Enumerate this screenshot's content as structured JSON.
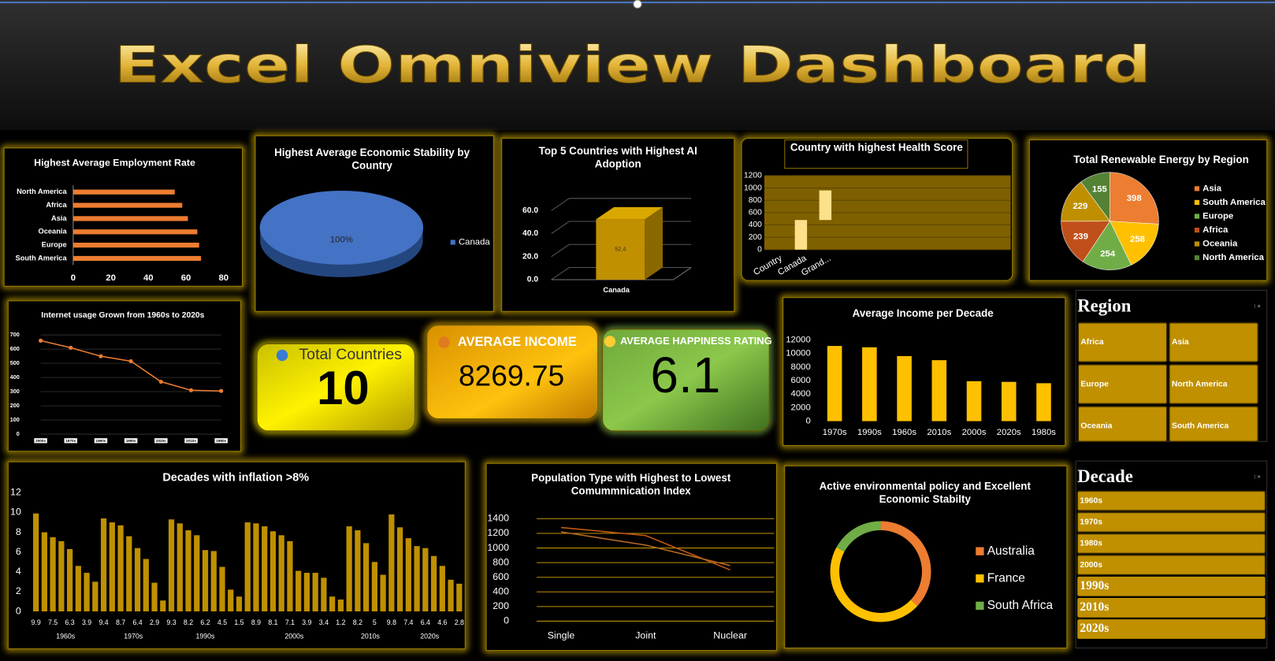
{
  "title": "Excel Omniview Dashboard",
  "chart_data": [
    {
      "type": "hbar",
      "title": "Highest  Average Employment Rate",
      "categories": [
        "North America",
        "Africa",
        "Asia",
        "Oceania",
        "Europe",
        "South America"
      ],
      "values": [
        54,
        58,
        61,
        66,
        67,
        68
      ],
      "color": "#ed7d31",
      "xlim": [
        0,
        80
      ],
      "xticks": [
        0,
        20,
        40,
        60,
        80
      ]
    },
    {
      "type": "pie3d",
      "title": "Highest Average Economic Stability by Country",
      "categories": [
        "Canada"
      ],
      "values": [
        100
      ],
      "value_labels": [
        "100%"
      ],
      "colors": [
        "#4472c4"
      ],
      "legend": "right"
    },
    {
      "type": "bar3d",
      "title": "Top 5 Countries with Highest AI Adoption",
      "categories": [
        "Canada"
      ],
      "values": [
        52.4
      ],
      "color": "#c09000",
      "ylim": [
        0,
        60
      ],
      "yticks": [
        {
          "value": 0,
          "label": "0.0"
        },
        {
          "value": 20,
          "label": "20.0"
        },
        {
          "value": 40,
          "label": "40.0"
        },
        {
          "value": 60,
          "label": "60.0"
        }
      ]
    },
    {
      "type": "waterfall",
      "title": "Country with highest Health Score",
      "categories": [
        "Country",
        "Canada",
        "Grand..."
      ],
      "values": [
        0,
        480,
        480
      ],
      "color": "#ffe08a",
      "ylim": [
        0,
        1200
      ],
      "yticks": [
        0,
        200,
        400,
        600,
        800,
        1000,
        1200
      ],
      "grid": true
    },
    {
      "type": "pie",
      "title": "Total Renewable Energy by Region",
      "categories": [
        "Asia",
        "South America",
        "Europe",
        "Africa",
        "Oceania",
        "North America"
      ],
      "values": [
        398,
        258,
        254,
        239,
        229,
        155
      ],
      "colors": [
        "#ed7d31",
        "#ffc000",
        "#70ad47",
        "#c0501a",
        "#bf8f00",
        "#548235"
      ],
      "legend": "right"
    },
    {
      "type": "line",
      "title": "Internet usage Grown from 1960s to 2020s",
      "categories": [
        "2000s",
        "1970s",
        "1960s",
        "1990s",
        "2020s",
        "2010s",
        "1980s"
      ],
      "values": [
        660,
        610,
        550,
        515,
        370,
        310,
        305
      ],
      "color": "#ed7d31",
      "ylim": [
        0,
        700
      ],
      "yticks": [
        0,
        100,
        200,
        300,
        400,
        500,
        600,
        700
      ],
      "grid": true
    },
    {
      "type": "column",
      "title": "Average Income per Decade",
      "categories": [
        "1970s",
        "1990s",
        "1960s",
        "2010s",
        "2000s",
        "2020s",
        "1980s"
      ],
      "values": [
        11100,
        10900,
        9600,
        9000,
        5900,
        5800,
        5600
      ],
      "color": "#ffc000",
      "ylim": [
        0,
        12000
      ],
      "yticks": [
        0,
        2000,
        4000,
        6000,
        8000,
        10000,
        12000
      ]
    },
    {
      "type": "column",
      "title": "Decades with inflation >8%",
      "categories": [
        "9.9",
        null,
        "7.5",
        null,
        "6.3",
        null,
        "3.9",
        null,
        "9.4",
        null,
        "8.7",
        null,
        "6.4",
        null,
        "2.9",
        null,
        "9.3",
        null,
        "8.2",
        null,
        "6.2",
        null,
        "4.5",
        null,
        "1.5",
        null,
        "8.9",
        null,
        "8.1",
        null,
        "7.1",
        null,
        "3.9",
        null,
        "3.4",
        null,
        "1.2",
        null,
        "8.2",
        null,
        "5",
        null,
        "9.8",
        null,
        "7.4",
        null,
        "6.4",
        null,
        "4.6",
        null,
        "2.8"
      ],
      "x_groups": [
        "1960s",
        "1960s",
        "1960s",
        "1960s",
        "1960s",
        "1960s",
        "1960s",
        "1960s",
        "1970s",
        "1970s",
        "1970s",
        "1970s",
        "1970s",
        "1970s",
        "1970s",
        "1970s",
        "1990s",
        "1990s",
        "1990s",
        "1990s",
        "1990s",
        "1990s",
        "1990s",
        "1990s",
        "1990s",
        "2000s",
        "2000s",
        "2000s",
        "2000s",
        "2000s",
        "2000s",
        "2000s",
        "2000s",
        "2000s",
        "2000s",
        "2000s",
        "2000s",
        "2010s",
        "2010s",
        "2010s",
        "2010s",
        "2010s",
        "2010s",
        "2020s",
        "2020s",
        "2020s",
        "2020s",
        "2020s",
        "2020s",
        "2020s",
        "2020s"
      ],
      "values": [
        9.9,
        8.0,
        7.5,
        7.1,
        6.3,
        4.6,
        3.9,
        3.0,
        9.4,
        9.0,
        8.7,
        7.6,
        6.4,
        5.3,
        2.9,
        1.1,
        9.3,
        8.9,
        8.2,
        7.7,
        6.2,
        6.1,
        4.5,
        2.2,
        1.5,
        9.0,
        8.9,
        8.6,
        8.1,
        7.7,
        7.1,
        4.1,
        3.9,
        3.9,
        3.4,
        1.5,
        1.2,
        8.6,
        8.2,
        6.9,
        5.0,
        3.7,
        9.8,
        8.5,
        7.4,
        6.6,
        6.4,
        5.6,
        4.6,
        3.2,
        2.8
      ],
      "color": "#bf9000",
      "ylim": [
        0,
        12
      ],
      "yticks": [
        0,
        2,
        4,
        6,
        8,
        10,
        12
      ]
    },
    {
      "type": "line",
      "title": "Population Type with Highest to Lowest Comummnication Index",
      "categories": [
        "Single",
        "Joint",
        "Nuclear"
      ],
      "series": [
        {
          "color": "#c55a11",
          "values": [
            1280,
            1170,
            700
          ]
        },
        {
          "color": "#b86a20",
          "values": [
            1220,
            1040,
            760
          ]
        }
      ],
      "ylim": [
        0,
        1400
      ],
      "yticks": [
        0,
        200,
        400,
        600,
        800,
        1000,
        1200,
        1400
      ],
      "grid": true
    },
    {
      "type": "doughnut",
      "title": "Active environmental policy and Excellent Economic Stabilty",
      "categories": [
        "Australia",
        "France",
        "South Africa"
      ],
      "values": [
        37,
        46,
        17
      ],
      "colors": [
        "#ed7d31",
        "#ffc000",
        "#70ad47"
      ],
      "legend": "right"
    }
  ],
  "kpis": [
    {
      "label": "Total Countries",
      "value": 10
    },
    {
      "label": "AVERAGE INCOME",
      "value": 8269.75
    },
    {
      "label": "AVERAGE HAPPINESS RATING",
      "value": 6.1
    }
  ],
  "slicers": [
    {
      "title": "Region",
      "items": [
        "Africa",
        "Asia",
        "Europe",
        "North America",
        "Oceania",
        "South America"
      ]
    },
    {
      "title": "Decade",
      "items": [
        "1960s",
        "1970s",
        "1980s",
        "2000s",
        "1990s",
        "2010s",
        "2020s"
      ]
    }
  ]
}
